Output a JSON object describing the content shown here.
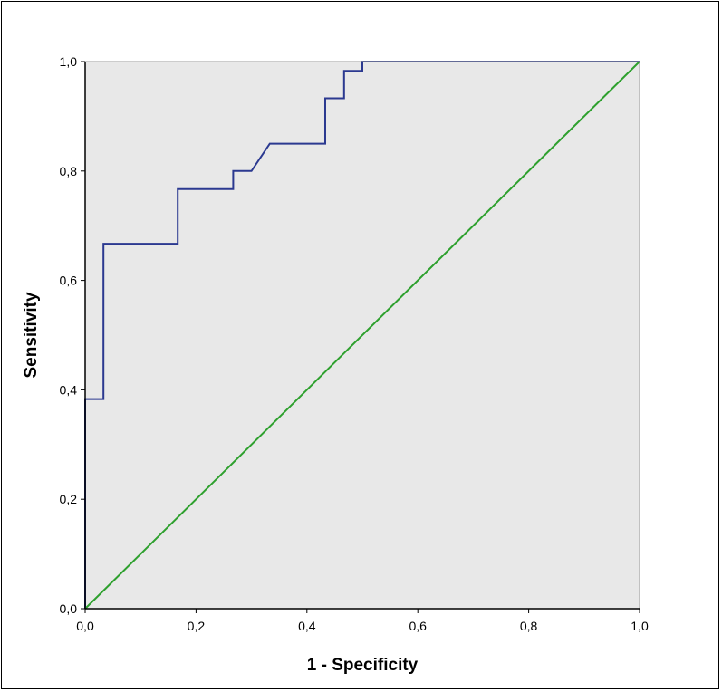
{
  "chart_data": {
    "type": "line",
    "xlabel": "1 - Specificity",
    "ylabel": "Sensitivity",
    "xlim": [
      0,
      1
    ],
    "ylim": [
      0,
      1
    ],
    "x_ticks": [
      "0,0",
      "0,2",
      "0,4",
      "0,6",
      "0,8",
      "1,0"
    ],
    "y_ticks": [
      "0,0",
      "0,2",
      "0,4",
      "0,6",
      "0,8",
      "1,0"
    ],
    "grid": false,
    "background_color": "#e8e8e8",
    "series": [
      {
        "color": "#2b3990",
        "points": [
          [
            0.0,
            0.0
          ],
          [
            0.0,
            0.383
          ],
          [
            0.033,
            0.383
          ],
          [
            0.033,
            0.667
          ],
          [
            0.167,
            0.667
          ],
          [
            0.167,
            0.767
          ],
          [
            0.267,
            0.767
          ],
          [
            0.267,
            0.8
          ],
          [
            0.3,
            0.8
          ],
          [
            0.333,
            0.85
          ],
          [
            0.433,
            0.85
          ],
          [
            0.433,
            0.933
          ],
          [
            0.467,
            0.933
          ],
          [
            0.467,
            0.983
          ],
          [
            0.5,
            0.983
          ],
          [
            0.5,
            1.0
          ],
          [
            1.0,
            1.0
          ]
        ]
      },
      {
        "color": "#2ea02e",
        "points": [
          [
            0.0,
            0.0
          ],
          [
            1.0,
            1.0
          ]
        ]
      }
    ]
  }
}
